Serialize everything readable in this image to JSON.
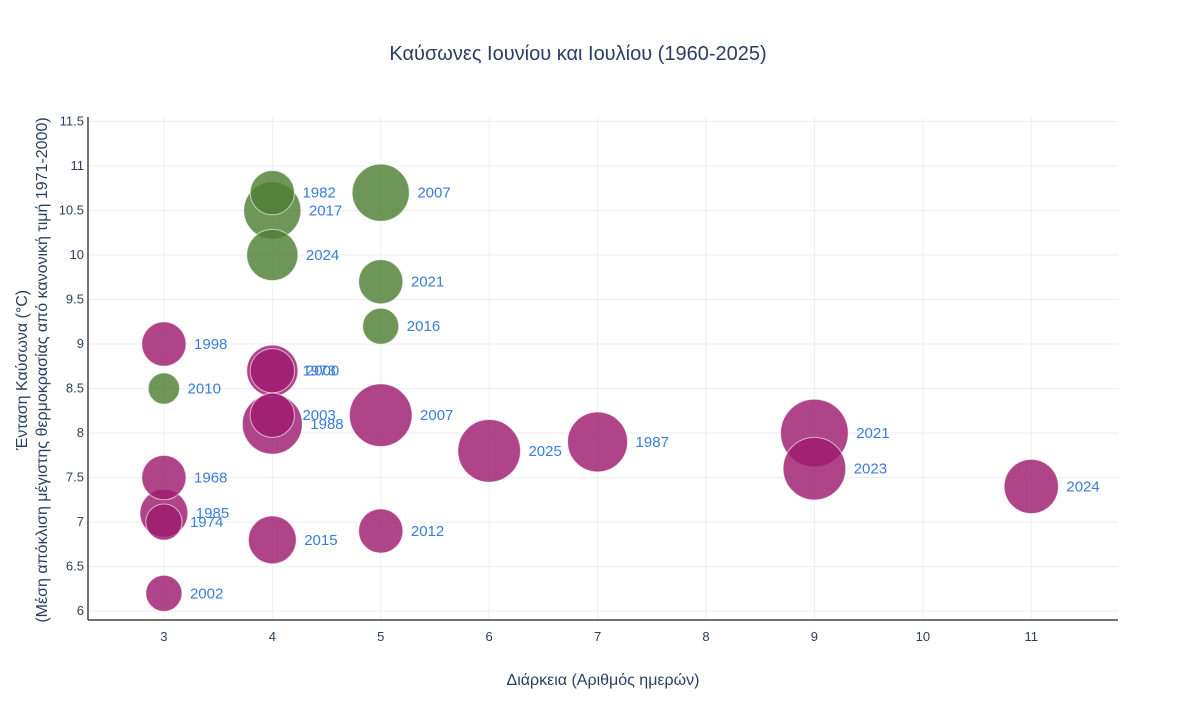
{
  "chart_data": {
    "type": "scatter",
    "title": "Καύσωνες Ιουνίου και Ιουλίου (1960-2025)",
    "xlabel": "Διάρκεια (Αριθμός ημερών)",
    "ylabel_line1": "Ένταση Καύσωνα (°C)",
    "ylabel_line2": "(Μέση απόκλιση μέγιστης θερμοκρασίας από κανονική τιμή 1971-2000)",
    "xlim": [
      2.3,
      11.8
    ],
    "ylim": [
      5.9,
      11.55
    ],
    "xticks": [
      3,
      4,
      5,
      6,
      7,
      8,
      9,
      10,
      11
    ],
    "yticks": [
      6,
      6.5,
      7,
      7.5,
      8,
      8.5,
      9,
      9.5,
      10,
      10.5,
      11,
      11.5
    ],
    "grid": true,
    "legend": "none",
    "label_color": "#3a7dd8",
    "series": [
      {
        "color": "#4f7f35",
        "points": [
          {
            "x": 4,
            "y": 10.7,
            "size": 3,
            "label": "1982"
          },
          {
            "x": 4,
            "y": 10.5,
            "size": 5,
            "label": "2017"
          },
          {
            "x": 5,
            "y": 10.7,
            "size": 5,
            "label": "2007"
          },
          {
            "x": 4,
            "y": 10.0,
            "size": 4,
            "label": "2024"
          },
          {
            "x": 5,
            "y": 9.7,
            "size": 3,
            "label": "2021"
          },
          {
            "x": 5,
            "y": 9.2,
            "size": 2,
            "label": "2016"
          },
          {
            "x": 3,
            "y": 8.5,
            "size": 1.5,
            "label": "2010"
          }
        ]
      },
      {
        "color": "#9e1b6e",
        "points": [
          {
            "x": 3,
            "y": 9.0,
            "size": 3,
            "label": "1998"
          },
          {
            "x": 4,
            "y": 8.7,
            "size": 4,
            "label": "2000"
          },
          {
            "x": 4,
            "y": 8.7,
            "size": 3,
            "label": "1973"
          },
          {
            "x": 5,
            "y": 8.2,
            "size": 6,
            "label": "2007"
          },
          {
            "x": 4,
            "y": 8.2,
            "size": 3,
            "label": "2003"
          },
          {
            "x": 4,
            "y": 8.1,
            "size": 5.5,
            "label": "1988"
          },
          {
            "x": 6,
            "y": 7.8,
            "size": 6,
            "label": "2025"
          },
          {
            "x": 7,
            "y": 7.9,
            "size": 5.5,
            "label": "1987"
          },
          {
            "x": 9,
            "y": 8.0,
            "size": 7,
            "label": "2021"
          },
          {
            "x": 9,
            "y": 7.6,
            "size": 6,
            "label": "2023"
          },
          {
            "x": 11,
            "y": 7.4,
            "size": 4.5,
            "label": "2024"
          },
          {
            "x": 3,
            "y": 7.5,
            "size": 3,
            "label": "1968"
          },
          {
            "x": 3,
            "y": 7.1,
            "size": 3.5,
            "label": "1985"
          },
          {
            "x": 3,
            "y": 7.0,
            "size": 2,
            "label": "1974"
          },
          {
            "x": 4,
            "y": 6.8,
            "size": 3.5,
            "label": "2015"
          },
          {
            "x": 5,
            "y": 6.9,
            "size": 3,
            "label": "2012"
          },
          {
            "x": 3,
            "y": 6.2,
            "size": 2,
            "label": "2002"
          }
        ]
      }
    ]
  }
}
